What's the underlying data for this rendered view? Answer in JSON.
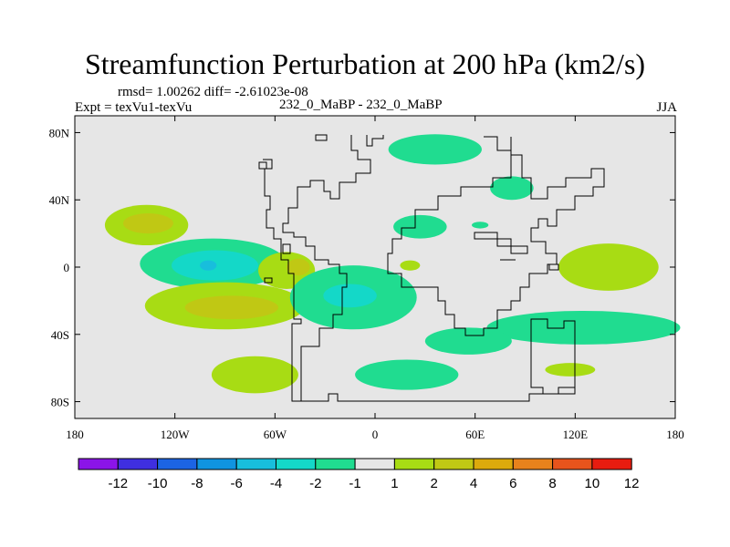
{
  "chart_data": {
    "type": "heatmap",
    "title": "Streamfunction Perturbation at 200 hPa (km2/s)",
    "stats": "rmsd= 1.00262 diff= -2.61023e-08",
    "expt": "Expt = texVu1-texVu",
    "run": "232_0_MaBP - 232_0_MaBP",
    "season": "JJA",
    "xlim": [
      -180,
      180
    ],
    "ylim": [
      -90,
      90
    ],
    "xticks": [
      {
        "v": -180,
        "label": "180"
      },
      {
        "v": -120,
        "label": "120W"
      },
      {
        "v": -60,
        "label": "60W"
      },
      {
        "v": 0,
        "label": "0"
      },
      {
        "v": 60,
        "label": "60E"
      },
      {
        "v": 120,
        "label": "120E"
      },
      {
        "v": 180,
        "label": "180"
      }
    ],
    "yticks": [
      {
        "v": 80,
        "label": "80N"
      },
      {
        "v": 40,
        "label": "40N"
      },
      {
        "v": 0,
        "label": "0"
      },
      {
        "v": -40,
        "label": "40S"
      },
      {
        "v": -80,
        "label": "80S"
      }
    ],
    "contour_levels": [
      -12,
      -10,
      -8,
      -6,
      -4,
      -2,
      -1,
      1,
      2,
      4,
      6,
      8,
      10,
      12
    ],
    "colorbar_labels": [
      "-12",
      "-10",
      "-8",
      "-6",
      "-4",
      "-2",
      "-1",
      "1",
      "2",
      "4",
      "6",
      "8",
      "10",
      "12"
    ],
    "colors": [
      "#8b14e8",
      "#3f2fe0",
      "#1c64e4",
      "#1094e0",
      "#18bedc",
      "#14d8c8",
      "#20dc90",
      "#e6e6e6",
      "#a8dc14",
      "#c0c814",
      "#dcaa0c",
      "#e8821c",
      "#e8541c",
      "#e81c10"
    ],
    "features": [
      {
        "name": "anomaly-b",
        "lon": -137,
        "lat": 25,
        "rx": 25,
        "ry": 12,
        "level": 2
      },
      {
        "name": "anomaly-b",
        "lon": -136,
        "lat": 26,
        "rx": 15,
        "ry": 6,
        "level": 4
      },
      {
        "name": "anomaly-a",
        "lon": -97,
        "lat": 2,
        "rx": 44,
        "ry": 15,
        "level": -1
      },
      {
        "name": "anomaly-a",
        "lon": -96,
        "lat": 1,
        "rx": 26,
        "ry": 9,
        "level": -2
      },
      {
        "name": "anomaly-a",
        "lon": -100,
        "lat": 1,
        "rx": 5,
        "ry": 3,
        "level": -4
      },
      {
        "name": "anomaly-b",
        "lon": -90,
        "lat": -23,
        "rx": 48,
        "ry": 14,
        "level": 2
      },
      {
        "name": "anomaly-b",
        "lon": -86,
        "lat": -24,
        "rx": 28,
        "ry": 7,
        "level": 4
      },
      {
        "name": "anomaly-b",
        "lon": -53,
        "lat": -2,
        "rx": 17,
        "ry": 11,
        "level": 2
      },
      {
        "name": "anomaly-b",
        "lon": -46,
        "lat": 0,
        "rx": 7,
        "ry": 5,
        "level": 4
      },
      {
        "name": "anomaly-a",
        "lon": -13,
        "lat": -18,
        "rx": 38,
        "ry": 19,
        "level": -1
      },
      {
        "name": "anomaly-a",
        "lon": -15,
        "lat": -17,
        "rx": 16,
        "ry": 7,
        "level": -2
      },
      {
        "name": "anomaly-a",
        "lon": -72,
        "lat": -64,
        "rx": 26,
        "ry": 11,
        "level": 2
      },
      {
        "name": "anomaly-a",
        "lon": 36,
        "lat": 70,
        "rx": 28,
        "ry": 9,
        "level": -1
      },
      {
        "name": "anomaly-a",
        "lon": 82,
        "lat": 47,
        "rx": 13,
        "ry": 7,
        "level": -1
      },
      {
        "name": "anomaly-a",
        "lon": 27,
        "lat": 24,
        "rx": 16,
        "ry": 7,
        "level": -1
      },
      {
        "name": "anomaly-a",
        "lon": 63,
        "lat": 25,
        "rx": 5,
        "ry": 2,
        "level": -1
      },
      {
        "name": "anomaly-b",
        "lon": 21,
        "lat": 1,
        "rx": 6,
        "ry": 3,
        "level": 2
      },
      {
        "name": "anomaly-b",
        "lon": 140,
        "lat": 0,
        "rx": 30,
        "ry": 14,
        "level": 2
      },
      {
        "name": "anomaly-a",
        "lon": 125,
        "lat": -36,
        "rx": 58,
        "ry": 10,
        "level": -1
      },
      {
        "name": "anomaly-a",
        "lon": 56,
        "lat": -44,
        "rx": 26,
        "ry": 8,
        "level": -1
      },
      {
        "name": "anomaly-a",
        "lon": 117,
        "lat": -61,
        "rx": 15,
        "ry": 4,
        "level": 2
      },
      {
        "name": "anomaly-a",
        "lon": 19,
        "lat": -64,
        "rx": 31,
        "ry": 9,
        "level": -1
      }
    ]
  }
}
